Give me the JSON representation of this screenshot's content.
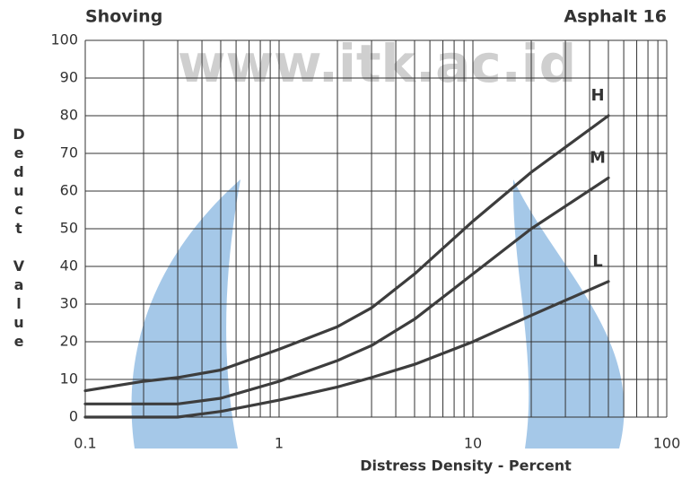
{
  "chart_data": {
    "type": "line",
    "title": "Shoving",
    "subtitle": "Asphalt 16",
    "watermark": "www.itk.ac.id",
    "x_label": "Distress Density - Percent",
    "y_label": "Deduct Value",
    "x": [
      0.1,
      0.2,
      0.3,
      0.5,
      1,
      2,
      3,
      5,
      10,
      20,
      50
    ],
    "series": [
      {
        "name": "H",
        "color": "#3d3d3d",
        "values": [
          7,
          9.5,
          10.5,
          12.5,
          18,
          24,
          29,
          38,
          52,
          65,
          80
        ]
      },
      {
        "name": "M",
        "color": "#3d3d3d",
        "values": [
          3.5,
          3.5,
          3.5,
          5,
          9.5,
          15,
          19,
          26,
          38,
          50,
          63.5
        ]
      },
      {
        "name": "L",
        "color": "#3d3d3d",
        "values": [
          0,
          0,
          0,
          1.5,
          4.5,
          8,
          10.5,
          14,
          20,
          27,
          36
        ]
      }
    ],
    "xlog": true,
    "xlim": [
      0.1,
      100
    ],
    "xticks": [
      0.1,
      1,
      10,
      100
    ],
    "xminorticks": [
      0.2,
      0.3,
      0.4,
      0.5,
      0.6,
      0.7,
      0.8,
      0.9,
      2,
      3,
      4,
      5,
      6,
      7,
      8,
      9,
      20,
      30,
      40,
      50,
      60,
      70,
      80,
      90
    ],
    "ylim": [
      0,
      100
    ],
    "yticks": [
      0,
      10,
      20,
      30,
      40,
      50,
      60,
      70,
      80,
      90,
      100
    ],
    "grid": true
  }
}
